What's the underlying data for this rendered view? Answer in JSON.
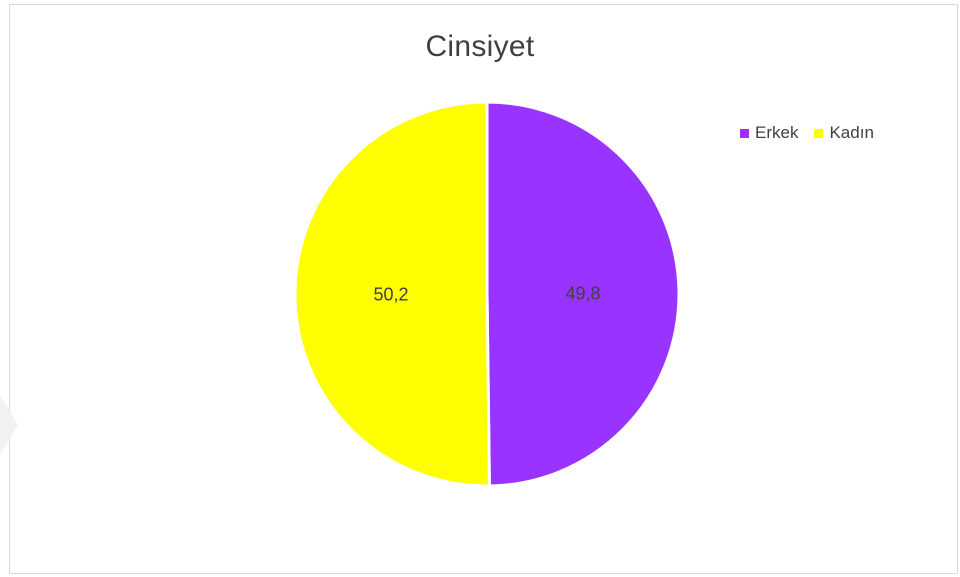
{
  "chart_data": {
    "type": "pie",
    "title": "Cinsiyet",
    "legend_position": "top-right",
    "slices": [
      {
        "name": "Erkek",
        "value": 49.8,
        "label": "49,8",
        "color": "#9933FF"
      },
      {
        "name": "Kadın",
        "value": 50.2,
        "label": "50,2",
        "color": "#FFFF00"
      }
    ]
  }
}
